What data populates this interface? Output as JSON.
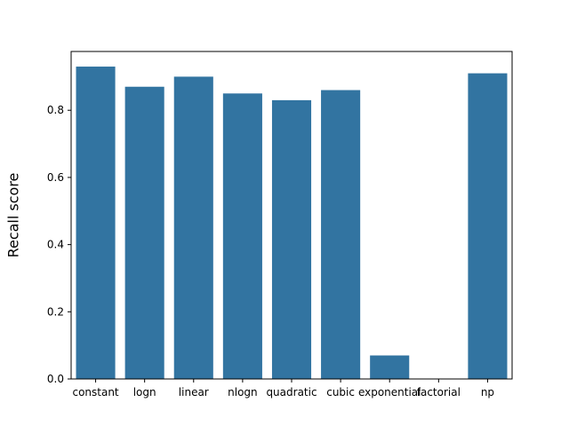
{
  "chart_data": {
    "type": "bar",
    "title": "",
    "xlabel": "",
    "ylabel": "Recall score",
    "categories": [
      "constant",
      "logn",
      "linear",
      "nlogn",
      "quadratic",
      "cubic",
      "exponential",
      "factorial",
      "np"
    ],
    "values": [
      0.93,
      0.87,
      0.9,
      0.85,
      0.83,
      0.86,
      0.07,
      0.0,
      0.91
    ],
    "ylim": [
      0,
      0.975
    ],
    "yticks": [
      0.0,
      0.2,
      0.4,
      0.6,
      0.8
    ],
    "ytick_labels": [
      "0.0",
      "0.2",
      "0.4",
      "0.6",
      "0.8"
    ],
    "grid": false,
    "legend": "none",
    "colors": {
      "bar": "#3274a1",
      "axis": "#000000",
      "background": "#ffffff"
    }
  }
}
